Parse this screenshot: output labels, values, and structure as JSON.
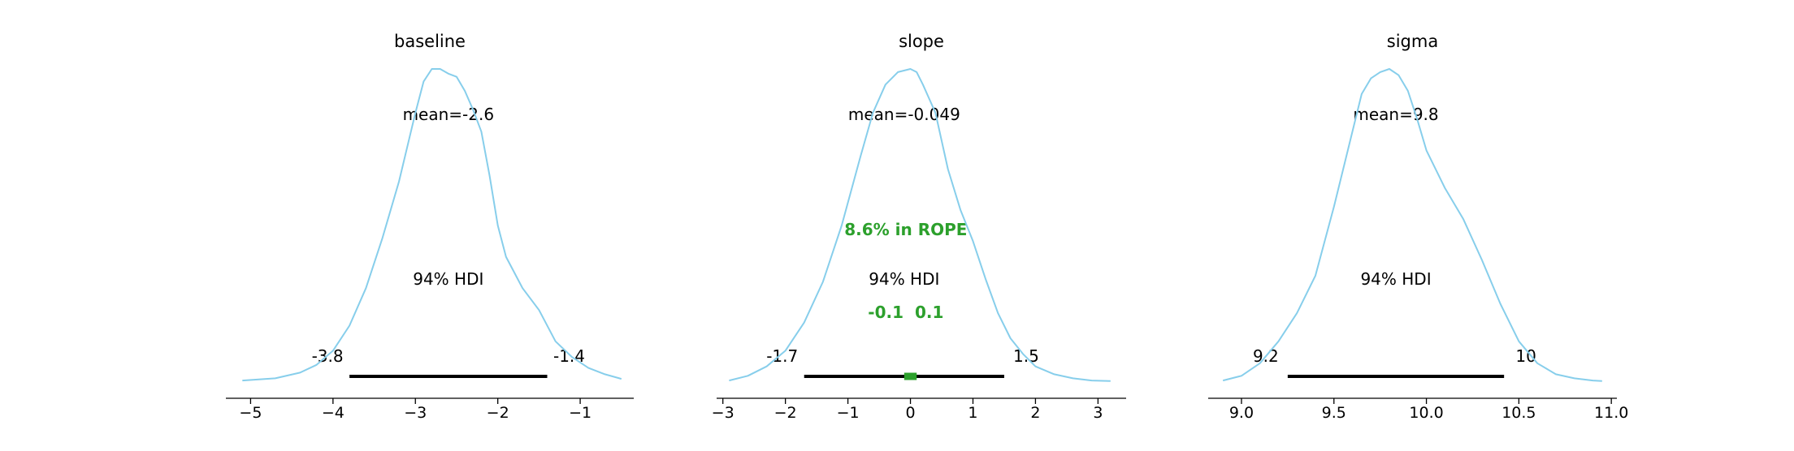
{
  "colors": {
    "density": "#87ceeb",
    "hdi_bar": "#000000",
    "rope": "#2ca02c",
    "text": "#000000",
    "axis": "#000000"
  },
  "chart_data": [
    {
      "type": "area",
      "title": "baseline",
      "mean_label": "mean=-2.6",
      "hdi_label": "94% HDI",
      "hdi": [
        -3.8,
        -1.4
      ],
      "hdi_text": [
        "-3.8",
        "-1.4"
      ],
      "xticks": [
        -5,
        -4,
        -3,
        -2,
        -1
      ],
      "xtick_labels": [
        "−5",
        "−4",
        "−3",
        "−2",
        "−1"
      ],
      "xlim": [
        -5.3,
        -0.35
      ],
      "density": {
        "x": [
          -5.1,
          -4.7,
          -4.4,
          -4.2,
          -4.0,
          -3.8,
          -3.6,
          -3.4,
          -3.2,
          -3.0,
          -2.9,
          -2.8,
          -2.7,
          -2.6,
          -2.5,
          -2.4,
          -2.3,
          -2.2,
          -2.1,
          -2.0,
          -1.9,
          -1.7,
          -1.5,
          -1.3,
          -1.1,
          -0.9,
          -0.7,
          -0.5
        ],
        "y": [
          0.005,
          0.012,
          0.03,
          0.055,
          0.1,
          0.18,
          0.3,
          0.46,
          0.64,
          0.86,
          0.96,
          1.0,
          1.0,
          0.985,
          0.975,
          0.93,
          0.87,
          0.8,
          0.66,
          0.5,
          0.4,
          0.3,
          0.23,
          0.13,
          0.08,
          0.045,
          0.025,
          0.01
        ]
      }
    },
    {
      "type": "area",
      "title": "slope",
      "mean_label": "mean=-0.049",
      "hdi_label": "94% HDI",
      "hdi": [
        -1.7,
        1.5
      ],
      "hdi_text": [
        "-1.7",
        "1.5"
      ],
      "rope": [
        -0.1,
        0.1
      ],
      "rope_label": "8.6% in ROPE",
      "rope_text": "-0.1  0.1",
      "xticks": [
        -3,
        -2,
        -1,
        0,
        1,
        2,
        3
      ],
      "xtick_labels": [
        "−3",
        "−2",
        "−1",
        "0",
        "1",
        "2",
        "3"
      ],
      "xlim": [
        -3.1,
        3.45
      ],
      "density": {
        "x": [
          -2.9,
          -2.6,
          -2.3,
          -2.0,
          -1.7,
          -1.4,
          -1.1,
          -0.8,
          -0.6,
          -0.4,
          -0.2,
          0.0,
          0.1,
          0.2,
          0.4,
          0.6,
          0.8,
          1.0,
          1.2,
          1.4,
          1.6,
          1.8,
          2.0,
          2.3,
          2.6,
          2.9,
          3.2
        ],
        "y": [
          0.005,
          0.02,
          0.05,
          0.1,
          0.19,
          0.32,
          0.5,
          0.72,
          0.86,
          0.95,
          0.99,
          1.0,
          0.99,
          0.95,
          0.86,
          0.68,
          0.55,
          0.45,
          0.33,
          0.22,
          0.14,
          0.09,
          0.05,
          0.025,
          0.012,
          0.005,
          0.003
        ]
      }
    },
    {
      "type": "area",
      "title": "sigma",
      "mean_label": "mean=9.8",
      "hdi_label": "94% HDI",
      "hdi": [
        9.25,
        10.42
      ],
      "hdi_text": [
        "9.2",
        "10"
      ],
      "xticks": [
        9.0,
        9.5,
        10.0,
        10.5,
        11.0
      ],
      "xtick_labels": [
        "9.0",
        "9.5",
        "10.0",
        "10.5",
        "11.0"
      ],
      "xlim": [
        8.82,
        11.03
      ],
      "density": {
        "x": [
          8.9,
          9.0,
          9.1,
          9.2,
          9.3,
          9.4,
          9.5,
          9.6,
          9.65,
          9.7,
          9.75,
          9.8,
          9.85,
          9.9,
          9.95,
          10.0,
          10.1,
          10.2,
          10.3,
          10.4,
          10.5,
          10.6,
          10.7,
          10.8,
          10.9,
          10.95
        ],
        "y": [
          0.005,
          0.02,
          0.06,
          0.13,
          0.22,
          0.34,
          0.56,
          0.8,
          0.92,
          0.97,
          0.99,
          1.0,
          0.98,
          0.93,
          0.84,
          0.74,
          0.62,
          0.52,
          0.39,
          0.25,
          0.13,
          0.06,
          0.025,
          0.012,
          0.005,
          0.003
        ]
      }
    }
  ]
}
